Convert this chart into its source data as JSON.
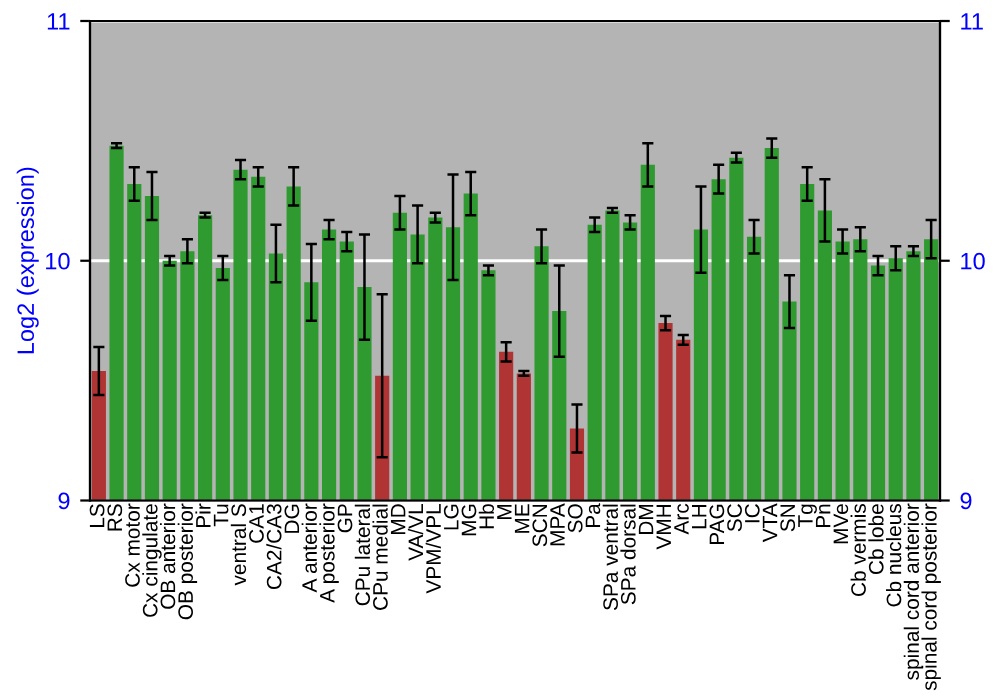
{
  "chart_data": {
    "type": "bar",
    "ylabel": "Log2 (expression)",
    "categories": [
      "LS",
      "RS",
      "Cx motor",
      "Cx cingulate",
      "OB anterior",
      "OB posterior",
      "Pir",
      "Tu",
      "ventral S",
      "CA1",
      "CA2/CA3",
      "DG",
      "A anterior",
      "A posterior",
      "GP",
      "CPu lateral",
      "CPu medial",
      "MD",
      "VA/VL",
      "VPM/VPL",
      "LG",
      "MG",
      "Hb",
      "M",
      "ME",
      "SCN",
      "MPA",
      "SO",
      "Pa",
      "SPa ventral",
      "SPa dorsal",
      "DM",
      "VMH",
      "Arc",
      "LH",
      "PAG",
      "SC",
      "IC",
      "VTA",
      "SN",
      "Tg",
      "Pn",
      "MVe",
      "Cb vermis",
      "Cb lobe",
      "Cb nucleus",
      "spinal cord anterior",
      "spinal cord posterior"
    ],
    "values": [
      9.54,
      10.48,
      10.32,
      10.27,
      10.0,
      10.04,
      10.19,
      9.97,
      10.38,
      10.35,
      10.03,
      10.31,
      9.91,
      10.13,
      10.08,
      9.89,
      9.52,
      10.2,
      10.11,
      10.18,
      10.14,
      10.28,
      9.96,
      9.62,
      9.53,
      10.06,
      9.79,
      9.3,
      10.15,
      10.21,
      10.16,
      10.4,
      9.74,
      9.67,
      10.13,
      10.34,
      10.43,
      10.1,
      10.47,
      9.83,
      10.32,
      10.21,
      10.08,
      10.09,
      9.98,
      10.01,
      10.04,
      10.09
    ],
    "errors": [
      0.1,
      0.01,
      0.07,
      0.1,
      0.02,
      0.05,
      0.01,
      0.05,
      0.04,
      0.04,
      0.12,
      0.08,
      0.16,
      0.04,
      0.04,
      0.22,
      0.34,
      0.07,
      0.12,
      0.02,
      0.22,
      0.09,
      0.02,
      0.04,
      0.01,
      0.07,
      0.19,
      0.1,
      0.03,
      0.01,
      0.03,
      0.09,
      0.03,
      0.02,
      0.18,
      0.06,
      0.02,
      0.07,
      0.04,
      0.11,
      0.07,
      0.13,
      0.05,
      0.05,
      0.04,
      0.05,
      0.02,
      0.08
    ],
    "colors": [
      "#b03434",
      "#2f9a2f",
      "#2f9a2f",
      "#2f9a2f",
      "#2f9a2f",
      "#2f9a2f",
      "#2f9a2f",
      "#2f9a2f",
      "#2f9a2f",
      "#2f9a2f",
      "#2f9a2f",
      "#2f9a2f",
      "#2f9a2f",
      "#2f9a2f",
      "#2f9a2f",
      "#2f9a2f",
      "#b03434",
      "#2f9a2f",
      "#2f9a2f",
      "#2f9a2f",
      "#2f9a2f",
      "#2f9a2f",
      "#2f9a2f",
      "#b03434",
      "#b03434",
      "#2f9a2f",
      "#2f9a2f",
      "#b03434",
      "#2f9a2f",
      "#2f9a2f",
      "#2f9a2f",
      "#2f9a2f",
      "#b03434",
      "#b03434",
      "#2f9a2f",
      "#2f9a2f",
      "#2f9a2f",
      "#2f9a2f",
      "#2f9a2f",
      "#2f9a2f",
      "#2f9a2f",
      "#2f9a2f",
      "#2f9a2f",
      "#2f9a2f",
      "#2f9a2f",
      "#2f9a2f",
      "#2f9a2f",
      "#2f9a2f"
    ],
    "ylim": [
      9,
      11
    ],
    "yticks": [
      9,
      10,
      11
    ],
    "y2lim": [
      9,
      11
    ],
    "y2ticks": [
      9,
      10,
      11
    ],
    "grid": "y"
  }
}
